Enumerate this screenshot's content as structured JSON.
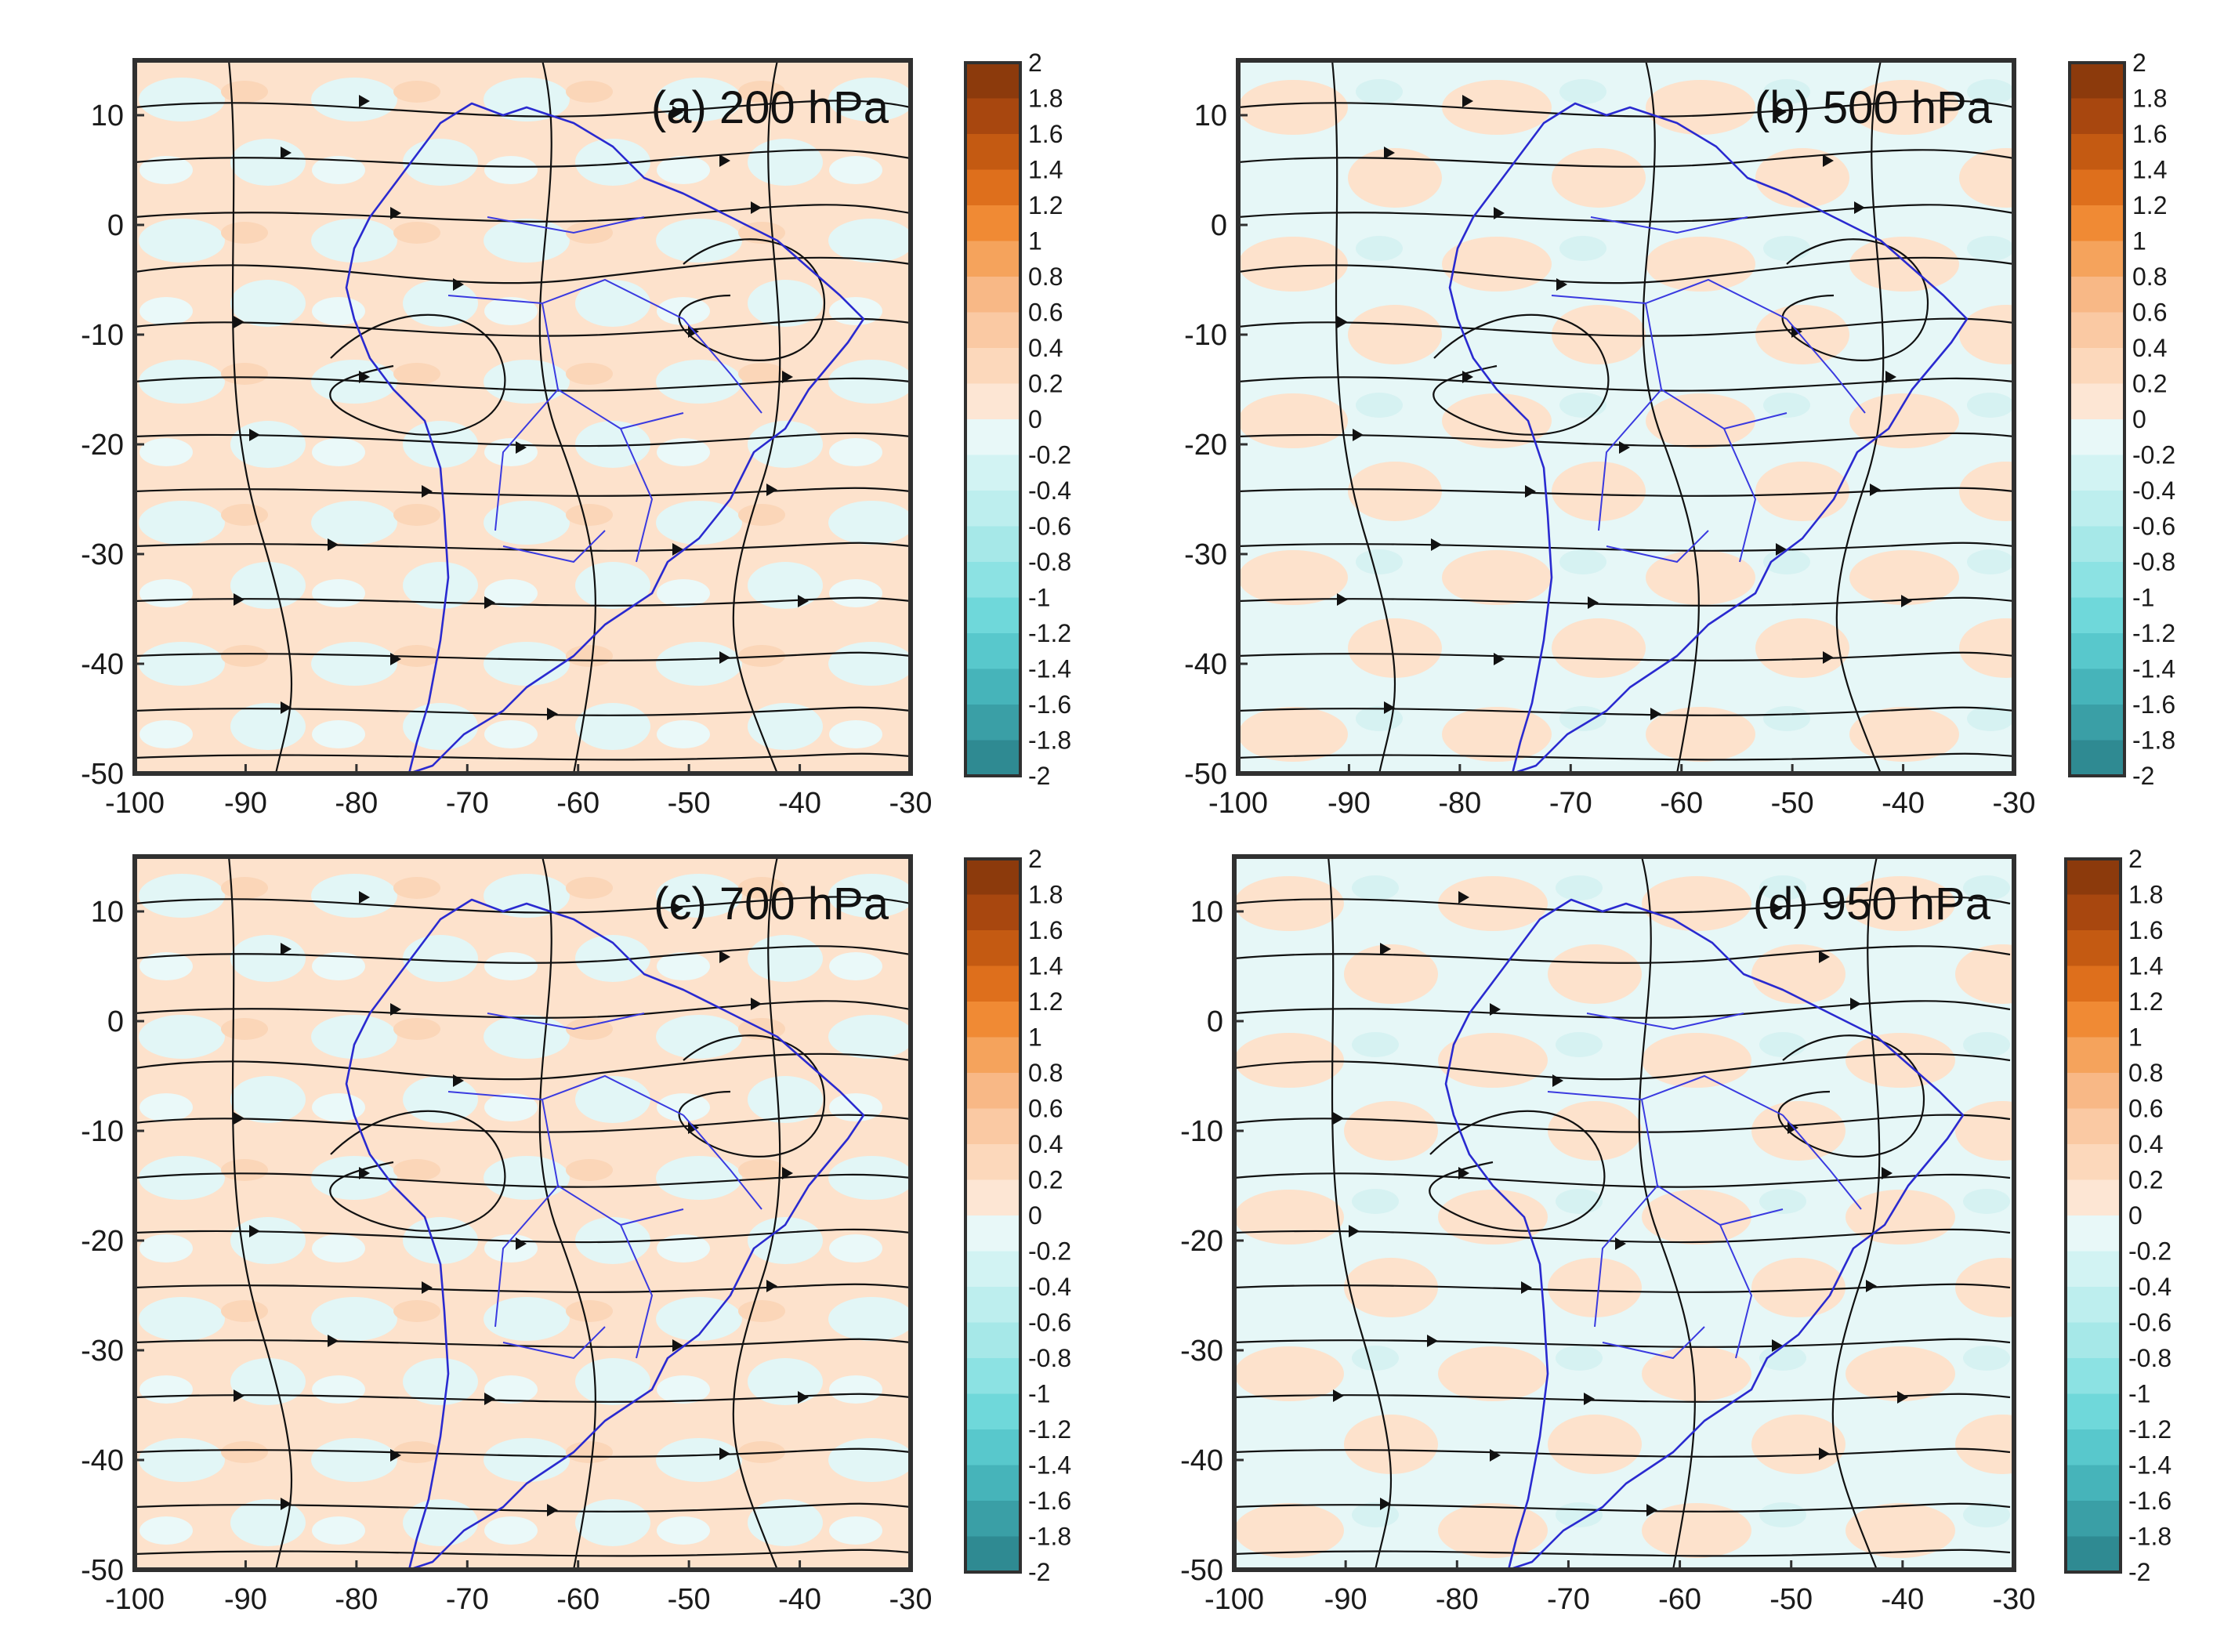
{
  "figure": {
    "panels": [
      {
        "id": "a",
        "title": "(a) 200 hPa"
      },
      {
        "id": "b",
        "title": "(b) 500 hPa"
      },
      {
        "id": "c",
        "title": "(c) 700 hPa"
      },
      {
        "id": "d",
        "title": "(d) 950 hPa"
      }
    ],
    "lon_ticks": [
      "-100",
      "-90",
      "-80",
      "-70",
      "-60",
      "-50",
      "-40",
      "-30"
    ],
    "lat_ticks": [
      "10",
      "0",
      "-10",
      "-20",
      "-30",
      "-40",
      "-50"
    ],
    "lon_range": [
      -100,
      -30
    ],
    "lat_range": [
      -50,
      15
    ],
    "colorbar": {
      "labels": [
        "2",
        "1.8",
        "1.6",
        "1.4",
        "1.2",
        "1",
        "0.8",
        "0.6",
        "0.4",
        "0.2",
        "0",
        "-0.2",
        "-0.4",
        "-0.6",
        "-0.8",
        "-1",
        "-1.2",
        "-1.4",
        "-1.6",
        "-1.8",
        "-2"
      ],
      "colors": [
        "#8c3a0c",
        "#a8470f",
        "#c45a12",
        "#de6f1c",
        "#f08a34",
        "#f5a35c",
        "#f8b886",
        "#fac9a3",
        "#fcd8bb",
        "#fde6d4",
        "#e8f8f8",
        "#d2f3f3",
        "#bdeeee",
        "#a6e8e8",
        "#8ce2e3",
        "#6fd8da",
        "#58c8cc",
        "#46b4ba",
        "#3a9fa6",
        "#2f8a92"
      ],
      "range": [
        -2,
        2
      ]
    },
    "colors": {
      "positive": "#fde2cc",
      "negative": "#e2f6f6",
      "streamline": "#111111",
      "coastline": "#2a2ad0"
    }
  }
}
